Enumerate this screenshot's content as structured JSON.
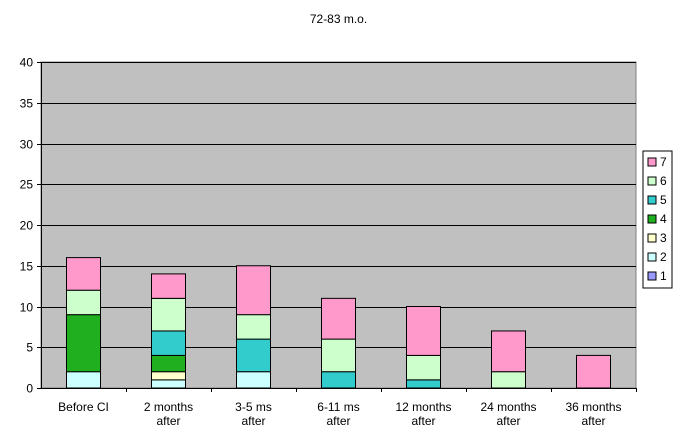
{
  "chart_data": {
    "type": "bar",
    "stacked": true,
    "title": "72-83 m.o.",
    "xlabel": "",
    "ylabel": "",
    "ylim": [
      0,
      40
    ],
    "yticks": [
      0,
      5,
      10,
      15,
      20,
      25,
      30,
      35,
      40
    ],
    "grid": true,
    "legend_position": "right",
    "categories": [
      [
        "Before CI"
      ],
      [
        "2 months",
        "after"
      ],
      [
        "3-5 ms",
        "after"
      ],
      [
        "6-11 ms",
        "after"
      ],
      [
        "12 months",
        "after"
      ],
      [
        "24 months",
        "after"
      ],
      [
        "36 months",
        "after"
      ]
    ],
    "series": [
      {
        "name": "1",
        "color": "#9999ff",
        "values": [
          0,
          0,
          0,
          0,
          0,
          0,
          0
        ]
      },
      {
        "name": "2",
        "color": "#ccffff",
        "values": [
          2,
          1,
          2,
          0,
          0,
          0,
          0
        ]
      },
      {
        "name": "3",
        "color": "#ffffcc",
        "values": [
          0,
          1,
          0,
          0,
          0,
          0,
          0
        ]
      },
      {
        "name": "4",
        "color": "#1faf1f",
        "values": [
          7,
          2,
          0,
          0,
          0,
          0,
          0
        ]
      },
      {
        "name": "5",
        "color": "#33cccc",
        "values": [
          0,
          3,
          4,
          2,
          1,
          0,
          0
        ]
      },
      {
        "name": "6",
        "color": "#ccffcc",
        "values": [
          3,
          4,
          3,
          4,
          3,
          2,
          0
        ]
      },
      {
        "name": "7",
        "color": "#ff99cc",
        "values": [
          4,
          3,
          6,
          5,
          6,
          5,
          4
        ]
      }
    ],
    "plot_background": "#c0c0c0"
  }
}
